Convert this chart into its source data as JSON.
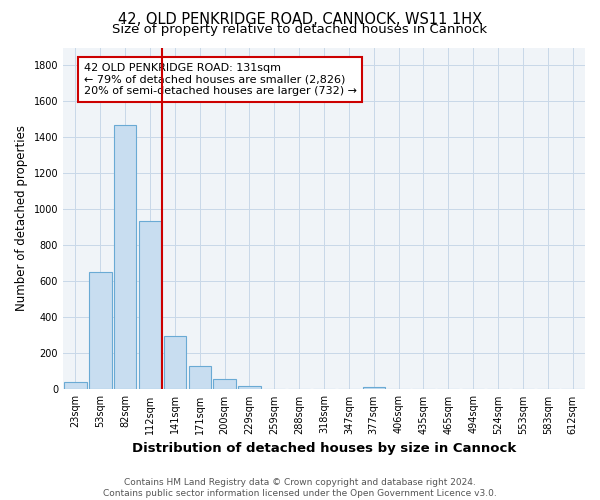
{
  "title": "42, OLD PENKRIDGE ROAD, CANNOCK, WS11 1HX",
  "subtitle": "Size of property relative to detached houses in Cannock",
  "xlabel": "Distribution of detached houses by size in Cannock",
  "ylabel": "Number of detached properties",
  "bar_labels": [
    "23sqm",
    "53sqm",
    "82sqm",
    "112sqm",
    "141sqm",
    "171sqm",
    "200sqm",
    "229sqm",
    "259sqm",
    "288sqm",
    "318sqm",
    "347sqm",
    "377sqm",
    "406sqm",
    "435sqm",
    "465sqm",
    "494sqm",
    "524sqm",
    "553sqm",
    "583sqm",
    "612sqm"
  ],
  "bar_values": [
    40,
    650,
    1470,
    935,
    295,
    130,
    60,
    20,
    5,
    5,
    5,
    3,
    12,
    0,
    0,
    0,
    0,
    0,
    0,
    0,
    0
  ],
  "bar_color": "#c8ddf0",
  "bar_edge_color": "#6aaad4",
  "vline_x": 3.5,
  "vline_color": "#cc0000",
  "annotation_text": "42 OLD PENKRIDGE ROAD: 131sqm\n← 79% of detached houses are smaller (2,826)\n20% of semi-detached houses are larger (732) →",
  "annotation_box_color": "white",
  "annotation_box_edge": "#cc0000",
  "ylim": [
    0,
    1900
  ],
  "yticks": [
    0,
    200,
    400,
    600,
    800,
    1000,
    1200,
    1400,
    1600,
    1800
  ],
  "footer": "Contains HM Land Registry data © Crown copyright and database right 2024.\nContains public sector information licensed under the Open Government Licence v3.0.",
  "bg_color": "#ffffff",
  "plot_bg_color": "#f0f4f8",
  "grid_color": "#c8d8e8",
  "title_fontsize": 10.5,
  "subtitle_fontsize": 9.5,
  "xlabel_fontsize": 9.5,
  "ylabel_fontsize": 8.5,
  "tick_fontsize": 7,
  "annotation_fontsize": 8,
  "footer_fontsize": 6.5
}
